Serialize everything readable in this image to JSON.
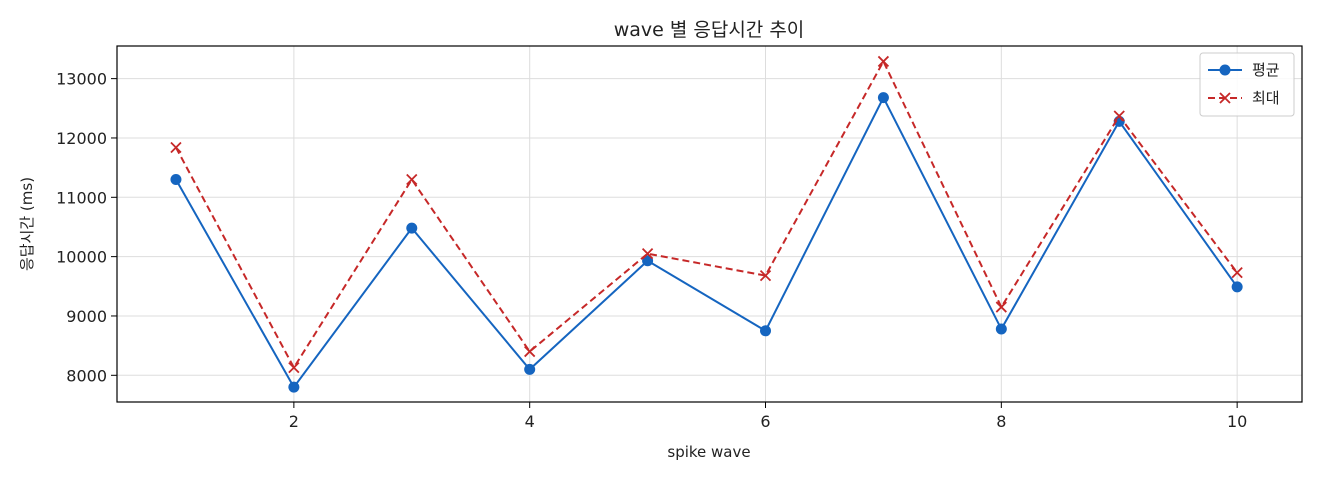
{
  "chart_data": {
    "type": "line",
    "title": "wave 별 응답시간 추이",
    "xlabel": "spike wave",
    "ylabel": "응답시간 (ms)",
    "x": [
      1,
      2,
      3,
      4,
      5,
      6,
      7,
      8,
      9,
      10
    ],
    "xticks": [
      2,
      4,
      6,
      8,
      10
    ],
    "yticks": [
      8000,
      9000,
      10000,
      11000,
      12000,
      13000
    ],
    "xlim": [
      0.5,
      10.55
    ],
    "ylim": [
      7550,
      13550
    ],
    "grid": true,
    "legend_position": "top-right",
    "series": [
      {
        "name": "평균",
        "color": "#1565c0",
        "line_style": "solid",
        "marker": "circle",
        "values": [
          11300,
          7800,
          10480,
          8100,
          9930,
          8750,
          12680,
          8780,
          12280,
          9490
        ]
      },
      {
        "name": "최대",
        "color": "#c62828",
        "line_style": "dashed",
        "marker": "x",
        "values": [
          11840,
          8130,
          11300,
          8400,
          10050,
          9680,
          13290,
          9150,
          12370,
          9730
        ]
      }
    ]
  }
}
